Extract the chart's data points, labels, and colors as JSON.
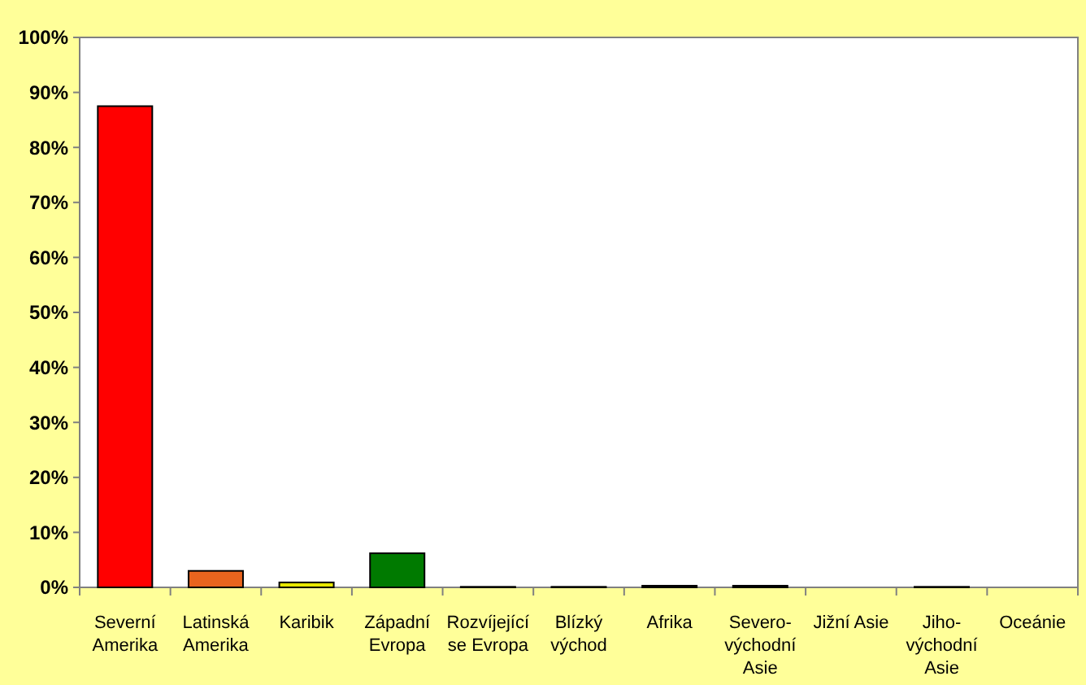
{
  "chart_data": {
    "type": "bar",
    "categories": [
      "Severní\nAmerika",
      "Latinská\nAmerika",
      "Karibik",
      "Západní\nEvropa",
      "Rozvíjející\nse Evropa",
      "Blízký\nvýchod",
      "Afrika",
      "Severo-\nvýchodní\nAsie",
      "Jižní Asie",
      "Jiho-\nvýchodní\nAsie",
      "Oceánie"
    ],
    "values": [
      87.5,
      3.0,
      0.9,
      6.2,
      0.1,
      0.1,
      0.3,
      0.3,
      0,
      0.1,
      0
    ],
    "colors": [
      "#ff0000",
      "#e8641e",
      "#e6e600",
      "#007a00",
      "#808080",
      "#333333",
      "#993366",
      "#000080",
      "#333333",
      "#333333",
      "#333333"
    ],
    "ylim": [
      0,
      100
    ],
    "yticks": [
      {
        "value": 0,
        "label": "0%"
      },
      {
        "value": 10,
        "label": "10%"
      },
      {
        "value": 20,
        "label": "20%"
      },
      {
        "value": 30,
        "label": "30%"
      },
      {
        "value": 40,
        "label": "40%"
      },
      {
        "value": 50,
        "label": "50%"
      },
      {
        "value": 60,
        "label": "60%"
      },
      {
        "value": 70,
        "label": "70%"
      },
      {
        "value": 80,
        "label": "80%"
      },
      {
        "value": 90,
        "label": "90%"
      },
      {
        "value": 100,
        "label": "100%"
      }
    ],
    "grid": false
  }
}
